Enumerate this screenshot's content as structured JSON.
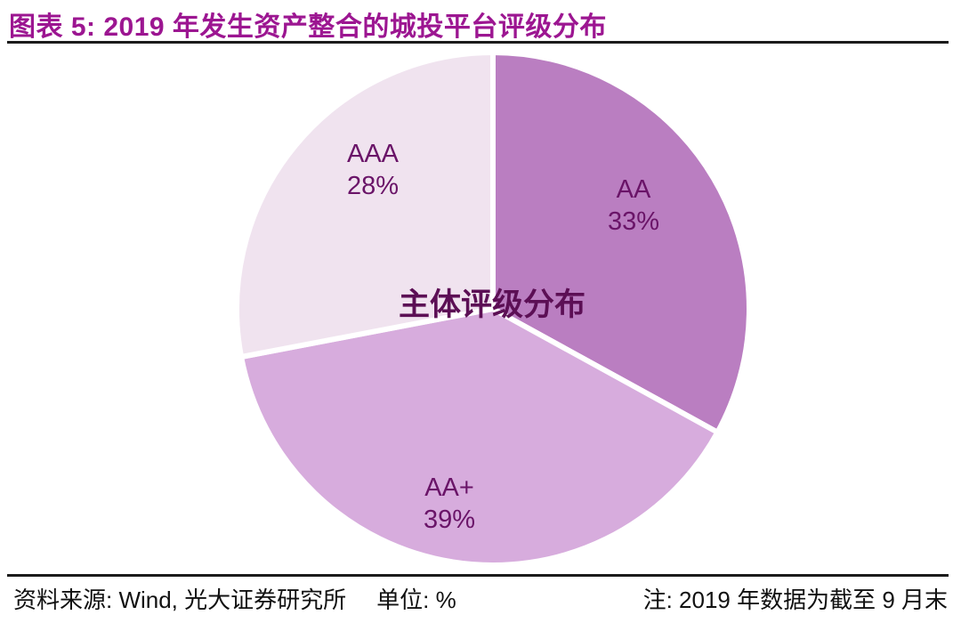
{
  "header": {
    "title": "图表 5: 2019 年发生资产整合的城投平台评级分布"
  },
  "chart_data": {
    "type": "pie",
    "title": "主体评级分布",
    "unit": "%",
    "direction": "clockwise",
    "start_angle_deg": 0,
    "legend": "none",
    "slices": [
      {
        "label": "AA",
        "value": 33,
        "color": "#ba7ec1"
      },
      {
        "label": "AA+",
        "value": 39,
        "color": "#d7acdd"
      },
      {
        "label": "AAA",
        "value": 28,
        "color": "#f0e3ef"
      }
    ],
    "slice_label_color": "#6a1468",
    "center_label_color": "#5c0f55",
    "separator_color": "#ffffff"
  },
  "footer": {
    "source": "资料来源: Wind, 光大证券研究所",
    "unit_label": "单位: %",
    "note": "注: 2019 年数据为截至 9 月末"
  },
  "style": {
    "title_color": "#9c1691",
    "rule_color": "#1b1b1b",
    "footer_color": "#111111"
  }
}
